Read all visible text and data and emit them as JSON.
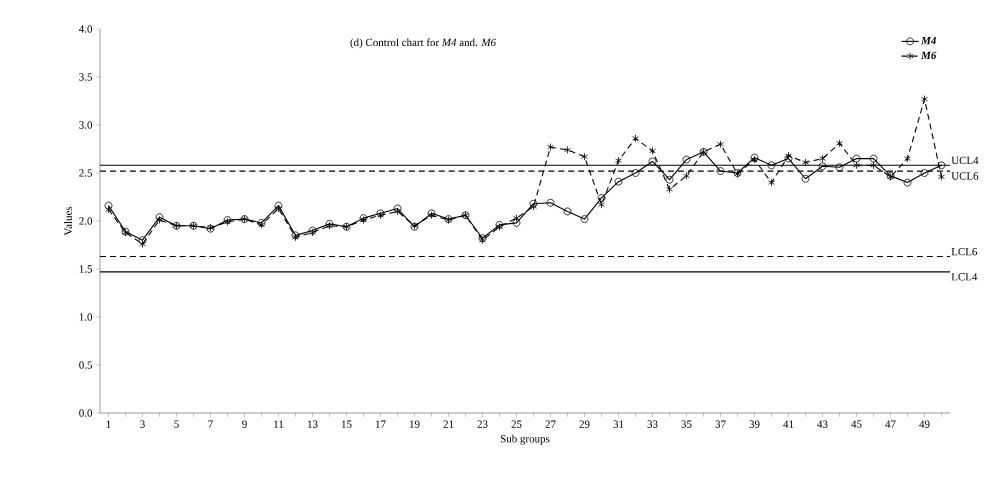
{
  "chart_data": {
    "type": "line",
    "title": "(d)    Control chart for  *M4* and. *M6*",
    "xlabel": "Sub groups",
    "ylabel": "Values",
    "categories": [
      "1",
      null,
      "3",
      null,
      "5",
      null,
      "7",
      null,
      "9",
      null,
      "11",
      null,
      "13",
      null,
      "15",
      null,
      "17",
      null,
      "19",
      null,
      "21",
      null,
      "23",
      null,
      "25",
      null,
      "27",
      null,
      "29",
      null,
      "31",
      null,
      "33",
      null,
      "35",
      null,
      "37",
      null,
      "39",
      null,
      "41",
      null,
      "43",
      null,
      "45",
      null,
      "47",
      null,
      "49",
      null
    ],
    "ylim": [
      0,
      4
    ],
    "yticks": [
      {
        "value": 0,
        "label": "0.0"
      },
      {
        "value": 0.5,
        "label": "0.5"
      },
      {
        "value": 1,
        "label": "1.0"
      },
      {
        "value": 1.5,
        "label": "1.5"
      },
      {
        "value": 2,
        "label": "2.0"
      },
      {
        "value": 2.5,
        "label": "2.5"
      },
      {
        "value": 3,
        "label": "3.0"
      },
      {
        "value": 3.5,
        "label": "3.5"
      },
      {
        "value": 4,
        "label": "4.0"
      }
    ],
    "legend": "top right",
    "grid": false,
    "series": [
      {
        "name": "M4",
        "color": "#000000",
        "marker": "circle",
        "line_style": "solid",
        "values": [
          2.16,
          1.89,
          1.8,
          2.04,
          1.95,
          1.95,
          1.92,
          2.01,
          2.02,
          1.98,
          2.16,
          1.85,
          1.9,
          1.97,
          1.94,
          2.03,
          2.08,
          2.13,
          1.94,
          2.08,
          2.02,
          2.06,
          1.82,
          1.96,
          1.98,
          2.18,
          2.19,
          2.1,
          2.02,
          2.24,
          2.41,
          2.5,
          2.62,
          2.43,
          2.64,
          2.72,
          2.52,
          2.5,
          2.66,
          2.58,
          2.65,
          2.44,
          2.57,
          2.56,
          2.65,
          2.65,
          2.47,
          2.4,
          2.5,
          2.58
        ]
      },
      {
        "name": "M6",
        "color": "#000000",
        "marker": "cross",
        "line_style": "dashed",
        "values": [
          2.12,
          1.88,
          1.76,
          2.01,
          1.95,
          1.95,
          1.93,
          1.99,
          2.02,
          1.96,
          2.13,
          1.83,
          1.88,
          1.95,
          1.94,
          2.01,
          2.06,
          2.1,
          1.95,
          2.06,
          2.01,
          2.06,
          1.8,
          1.94,
          2.03,
          2.15,
          2.77,
          2.74,
          2.67,
          2.17,
          2.63,
          2.86,
          2.73,
          2.33,
          2.47,
          2.72,
          2.8,
          2.49,
          2.64,
          2.4,
          2.68,
          2.61,
          2.65,
          2.81,
          2.58,
          2.58,
          2.46,
          2.65,
          3.27,
          2.46
        ]
      }
    ],
    "ref_lines": [
      {
        "axis": "y",
        "value": 2.58,
        "label": "UCL4",
        "line_style": "solid",
        "color": "#000000"
      },
      {
        "axis": "y",
        "value": 2.52,
        "label": "UCL6",
        "line_style": "dashed",
        "color": "#000000"
      },
      {
        "axis": "y",
        "value": 1.63,
        "label": "LCL6",
        "line_style": "dashed",
        "color": "#000000"
      },
      {
        "axis": "y",
        "value": 1.47,
        "label": "LCL4",
        "line_style": "solid",
        "color": "#000000"
      }
    ]
  }
}
